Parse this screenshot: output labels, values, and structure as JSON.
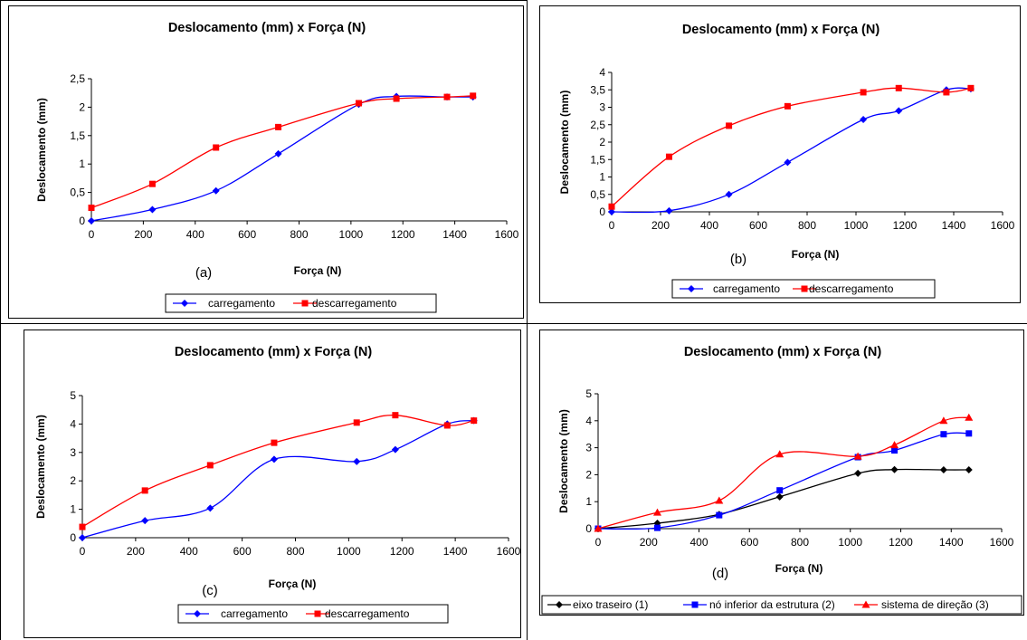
{
  "chart_data": [
    {
      "panel_label": "(a)",
      "type": "line",
      "title": "Deslocamento (mm) x Força (N)",
      "xlabel": "Força (N)",
      "ylabel": "Deslocamento (mm)",
      "xlim": [
        0,
        1600
      ],
      "ylim": [
        0,
        2.5
      ],
      "xticks": [
        "0",
        "200",
        "400",
        "600",
        "800",
        "1000",
        "1200",
        "1400",
        "1600"
      ],
      "yticks": [
        "0",
        "0,5",
        "1",
        "1,5",
        "2",
        "2,5"
      ],
      "grid": false,
      "legend": "bottom",
      "series": [
        {
          "name": "carregamento",
          "color": "#0000ff",
          "marker": "diamond",
          "x": [
            0,
            235,
            480,
            720,
            1030,
            1175,
            1370,
            1470
          ],
          "y": [
            0,
            0.2,
            0.53,
            1.18,
            2.05,
            2.19,
            2.18,
            2.18
          ]
        },
        {
          "name": "descarregamento",
          "color": "#ff0000",
          "marker": "square",
          "x": [
            0,
            235,
            480,
            720,
            1030,
            1175,
            1370,
            1470
          ],
          "y": [
            0.23,
            0.65,
            1.29,
            1.65,
            2.07,
            2.15,
            2.18,
            2.2
          ]
        }
      ]
    },
    {
      "panel_label": "(b)",
      "type": "line",
      "title": "Deslocamento (mm) x Força (N)",
      "xlabel": "Força (N)",
      "ylabel": "Deslocamento (mm)",
      "xlim": [
        0,
        1600
      ],
      "ylim": [
        0,
        4
      ],
      "xticks": [
        "0",
        "200",
        "400",
        "600",
        "800",
        "1000",
        "1200",
        "1400",
        "1600"
      ],
      "yticks": [
        "0",
        "0,5",
        "1",
        "1,5",
        "2",
        "2,5",
        "3",
        "3,5",
        "4"
      ],
      "grid": false,
      "legend": "bottom",
      "series": [
        {
          "name": "carregamento",
          "color": "#0000ff",
          "marker": "diamond",
          "x": [
            0,
            235,
            480,
            720,
            1030,
            1175,
            1370,
            1470
          ],
          "y": [
            0,
            0.03,
            0.5,
            1.42,
            2.65,
            2.9,
            3.5,
            3.53
          ]
        },
        {
          "name": "descarregamento",
          "color": "#ff0000",
          "marker": "square",
          "x": [
            0,
            235,
            480,
            720,
            1030,
            1175,
            1370,
            1470
          ],
          "y": [
            0.15,
            1.58,
            2.47,
            3.03,
            3.43,
            3.55,
            3.43,
            3.55
          ]
        }
      ]
    },
    {
      "panel_label": "(c)",
      "type": "line",
      "title": "Deslocamento (mm) x Força (N)",
      "xlabel": "Força (N)",
      "ylabel": "Deslocamento (mm)",
      "xlim": [
        0,
        1600
      ],
      "ylim": [
        0,
        5
      ],
      "xticks": [
        "0",
        "200",
        "400",
        "600",
        "800",
        "1000",
        "1200",
        "1400",
        "1600"
      ],
      "yticks": [
        "0",
        "1",
        "2",
        "3",
        "4",
        "5"
      ],
      "grid": false,
      "legend": "bottom",
      "series": [
        {
          "name": "carregamento",
          "color": "#0000ff",
          "marker": "diamond",
          "x": [
            0,
            235,
            480,
            720,
            1030,
            1175,
            1370,
            1470
          ],
          "y": [
            0,
            0.6,
            1.04,
            2.76,
            2.68,
            3.1,
            4.0,
            4.12
          ]
        },
        {
          "name": "descarregamento",
          "color": "#ff0000",
          "marker": "square",
          "x": [
            0,
            235,
            480,
            720,
            1030,
            1175,
            1370,
            1470
          ],
          "y": [
            0.38,
            1.66,
            2.55,
            3.34,
            4.05,
            4.31,
            3.95,
            4.12
          ]
        }
      ]
    },
    {
      "panel_label": "(d)",
      "type": "line",
      "title": "Deslocamento (mm) x Força (N)",
      "xlabel": "Força (N)",
      "ylabel": "Deslocamento (mm)",
      "xlim": [
        0,
        1600
      ],
      "ylim": [
        0,
        5
      ],
      "xticks": [
        "0",
        "200",
        "400",
        "600",
        "800",
        "1000",
        "1200",
        "1400",
        "1600"
      ],
      "yticks": [
        "0",
        "1",
        "2",
        "3",
        "4",
        "5"
      ],
      "grid": false,
      "legend": "bottom",
      "series": [
        {
          "name": "eixo traseiro (1)",
          "color": "#000000",
          "marker": "diamond",
          "x": [
            0,
            235,
            480,
            720,
            1030,
            1175,
            1370,
            1470
          ],
          "y": [
            0,
            0.2,
            0.53,
            1.18,
            2.05,
            2.19,
            2.18,
            2.18
          ]
        },
        {
          "name": "nó inferior da estrutura (2)",
          "color": "#0000ff",
          "marker": "square",
          "x": [
            0,
            235,
            480,
            720,
            1030,
            1175,
            1370,
            1470
          ],
          "y": [
            0,
            0.03,
            0.5,
            1.42,
            2.65,
            2.9,
            3.5,
            3.53
          ]
        },
        {
          "name": "sistema de direção (3)",
          "color": "#ff0000",
          "marker": "triangle",
          "x": [
            0,
            235,
            480,
            720,
            1030,
            1175,
            1370,
            1470
          ],
          "y": [
            0,
            0.6,
            1.04,
            2.76,
            2.68,
            3.1,
            4.0,
            4.12
          ]
        }
      ]
    }
  ]
}
